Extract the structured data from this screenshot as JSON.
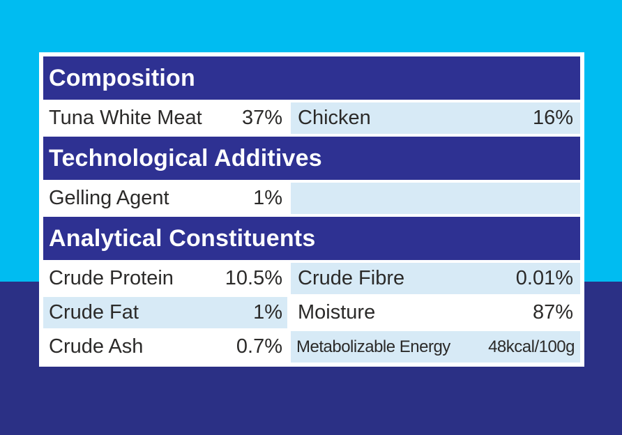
{
  "colors": {
    "background_top": "#00BCF1",
    "background_bottom": "#2B3085",
    "section_header_bar": "#2E3192",
    "shaded_cell": "#D7EAF6",
    "plain_cell": "#FFFFFF",
    "header_text": "#FFFFFF",
    "body_text": "#2B2A29"
  },
  "label": {
    "sections": [
      {
        "title": "Composition",
        "rows": [
          {
            "cells": [
              {
                "name": "Tuna White Meat",
                "value": "37%"
              },
              {
                "name": "Chicken",
                "value": "16%"
              }
            ]
          }
        ]
      },
      {
        "title": "Technological Additives",
        "rows": [
          {
            "cells": [
              {
                "name": "Gelling Agent",
                "value": "1%"
              },
              {
                "name": "",
                "value": ""
              }
            ]
          }
        ]
      },
      {
        "title": "Analytical Constituents",
        "rows": [
          {
            "cells": [
              {
                "name": "Crude Protein",
                "value": "10.5%"
              },
              {
                "name": "Crude Fibre",
                "value": "0.01%"
              }
            ]
          },
          {
            "cells": [
              {
                "name": "Crude Fat",
                "value": "1%"
              },
              {
                "name": "Moisture",
                "value": "87%"
              }
            ]
          },
          {
            "cells": [
              {
                "name": "Crude Ash",
                "value": "0.7%"
              },
              {
                "name": "Metabolizable Energy",
                "value": "48kcal/100g"
              }
            ]
          }
        ]
      }
    ]
  }
}
